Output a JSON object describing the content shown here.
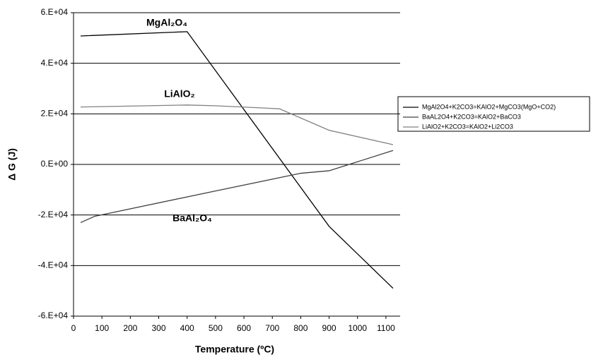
{
  "chart_data": {
    "type": "line",
    "x_label": "Temperature (ºC)",
    "y_label": "Δ G (J)",
    "xlim": [
      0,
      1150
    ],
    "xticks": [
      0,
      100,
      200,
      300,
      400,
      500,
      600,
      700,
      800,
      900,
      1000,
      1100
    ],
    "ylim": [
      -60000,
      60000
    ],
    "yticks": [
      {
        "value": -60000,
        "label": "-6.E+04"
      },
      {
        "value": -40000,
        "label": "-4.E+04"
      },
      {
        "value": -20000,
        "label": "-2.E+04"
      },
      {
        "value": 0,
        "label": "0.E+00"
      },
      {
        "value": 20000,
        "label": "2.E+04"
      },
      {
        "value": 40000,
        "label": "4.E+04"
      },
      {
        "value": 60000,
        "label": "6.E+04"
      }
    ],
    "grid": true,
    "legend": "right",
    "annotations": [
      "MgAl₂O₄",
      "LiAlO₂",
      "BaAl₂O₄"
    ],
    "series": [
      {
        "name": "MgAl2O4+K2CO3=KAlO2+MgCO3(MgO+CO2)",
        "color": "#000000",
        "x": [
          25,
          400,
          900,
          1125
        ],
        "values": [
          50800,
          52500,
          -24500,
          -49000
        ]
      },
      {
        "name": "BaAL2O4+K2CO3=KAlO2+BaCO3",
        "color": "#404040",
        "x": [
          25,
          75,
          500,
          800,
          900,
          1125
        ],
        "values": [
          -23000,
          -20500,
          -10500,
          -3500,
          -2500,
          5500
        ]
      },
      {
        "name": "LiAlO2+K2CO3=KAlO2+Li2CO3",
        "color": "#808080",
        "x": [
          25,
          400,
          500,
          725,
          900,
          1125
        ],
        "values": [
          22700,
          23500,
          23200,
          22000,
          13500,
          7800
        ]
      }
    ]
  }
}
